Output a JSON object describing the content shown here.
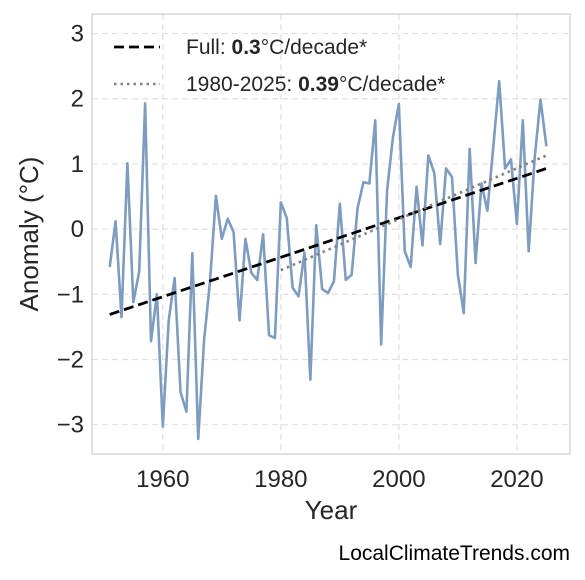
{
  "chart_data": {
    "type": "line",
    "xlabel": "Year",
    "ylabel": "Anomaly (°C)",
    "xlim": [
      1948,
      2029
    ],
    "ylim": [
      -3.45,
      3.3
    ],
    "xticks": [
      1960,
      1980,
      2000,
      2020
    ],
    "yticks": [
      -3,
      -2,
      -1,
      0,
      1,
      2,
      3
    ],
    "ytick_labels": [
      "−3",
      "−2",
      "−1",
      "0",
      "1",
      "2",
      "3"
    ],
    "grid": true,
    "legend_position": "top-left",
    "series": [
      {
        "type": "line",
        "color": "#7d9cbf",
        "x": [
          1951,
          1952,
          1953,
          1954,
          1955,
          1956,
          1957,
          1958,
          1959,
          1960,
          1961,
          1962,
          1963,
          1964,
          1965,
          1966,
          1967,
          1968,
          1969,
          1970,
          1971,
          1972,
          1973,
          1974,
          1975,
          1976,
          1977,
          1978,
          1979,
          1980,
          1981,
          1982,
          1983,
          1984,
          1985,
          1986,
          1987,
          1988,
          1989,
          1990,
          1991,
          1992,
          1993,
          1994,
          1995,
          1996,
          1997,
          1998,
          1999,
          2000,
          2001,
          2002,
          2003,
          2004,
          2005,
          2006,
          2007,
          2008,
          2009,
          2010,
          2011,
          2012,
          2013,
          2014,
          2015,
          2016,
          2017,
          2018,
          2019,
          2020,
          2021,
          2022,
          2023,
          2024,
          2025
        ],
        "y": [
          -0.58,
          0.12,
          -1.35,
          1.01,
          -1.12,
          -0.65,
          1.93,
          -1.72,
          -1.0,
          -3.03,
          -1.4,
          -0.75,
          -2.5,
          -2.8,
          -0.37,
          -3.22,
          -1.7,
          -0.8,
          0.51,
          -0.15,
          0.16,
          -0.05,
          -1.4,
          -0.15,
          -0.67,
          -0.78,
          -0.08,
          -1.63,
          -1.67,
          0.41,
          0.17,
          -0.9,
          -1.03,
          -0.36,
          -2.31,
          0.06,
          -0.92,
          -0.98,
          -0.8,
          0.39,
          -0.78,
          -0.7,
          0.32,
          0.72,
          0.7,
          1.67,
          -1.77,
          0.59,
          1.41,
          1.92,
          -0.34,
          -0.58,
          0.65,
          -0.25,
          1.13,
          0.86,
          -0.23,
          0.93,
          0.8,
          -0.7,
          -1.29,
          1.23,
          -0.52,
          0.7,
          0.28,
          1.26,
          2.27,
          0.93,
          1.07,
          0.08,
          1.67,
          -0.34,
          1.08,
          1.99,
          1.27
        ]
      },
      {
        "type": "line",
        "style": "dashed",
        "color": "#000000",
        "x": [
          1951,
          2025
        ],
        "y": [
          -1.31,
          0.93
        ]
      },
      {
        "type": "line",
        "style": "dotted",
        "color": "#808080",
        "x": [
          1980,
          2025
        ],
        "y": [
          -0.63,
          1.13
        ]
      }
    ],
    "legend": [
      {
        "style": "dashed",
        "color": "#000000",
        "prefix": "Full: ",
        "bold": "0.3",
        "suffix": "°C/decade*"
      },
      {
        "style": "dotted",
        "color": "#808080",
        "prefix": "1980-2025: ",
        "bold": "0.39",
        "suffix": "°C/decade*"
      }
    ],
    "footer": "LocalClimateTrends.com"
  }
}
